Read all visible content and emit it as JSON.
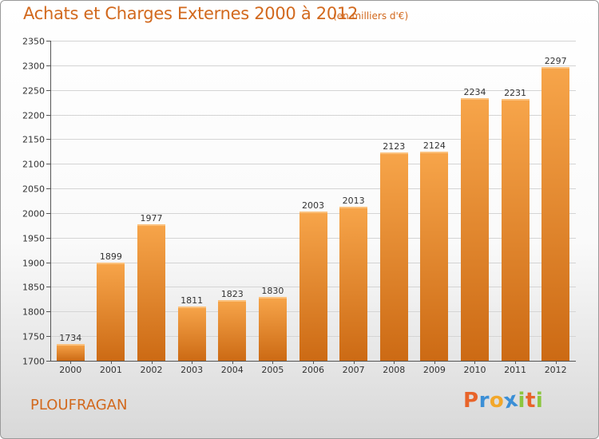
{
  "chart": {
    "title": "Achats et Charges Externes 2000 à 2012",
    "subtitle": "(en milliers d'€)",
    "place": "PLOUFRAGAN",
    "brand": "Proxiti",
    "brand_colors": [
      "#e8642a",
      "#3b8fd6",
      "#f2a72a",
      "#3b8fd6",
      "#8cc63f",
      "#e8642a",
      "#8cc63f"
    ]
  },
  "chart_data": {
    "type": "bar",
    "title": "Achats et Charges Externes 2000 à 2012",
    "subtitle": "(en milliers d'€)",
    "xlabel": "",
    "ylabel": "",
    "categories": [
      "2000",
      "2001",
      "2002",
      "2003",
      "2004",
      "2005",
      "2006",
      "2007",
      "2008",
      "2009",
      "2010",
      "2011",
      "2012"
    ],
    "values": [
      1734,
      1899,
      1977,
      1811,
      1823,
      1830,
      2003,
      2013,
      2123,
      2124,
      2234,
      2231,
      2297
    ],
    "ylim": [
      1700,
      2350
    ],
    "yticks": [
      1700,
      1750,
      1800,
      1850,
      1900,
      1950,
      2000,
      2050,
      2100,
      2150,
      2200,
      2250,
      2300,
      2350
    ],
    "grid": true,
    "bar_color": "#f0932f",
    "bar_color_dark": "#cc6a14"
  }
}
